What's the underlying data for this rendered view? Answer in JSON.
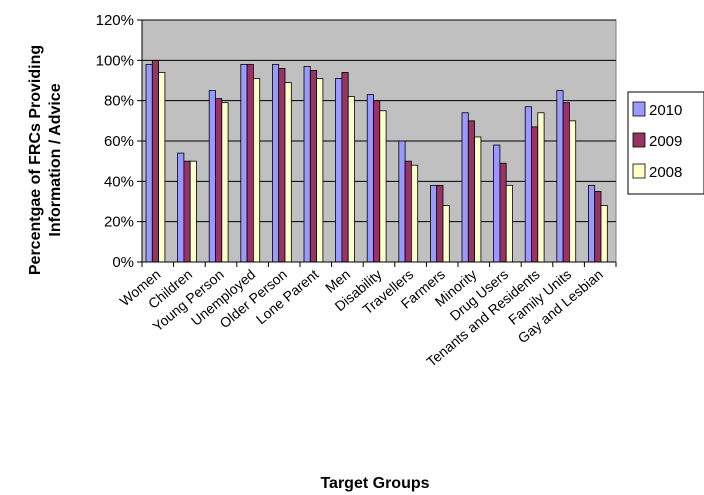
{
  "chart_data": {
    "type": "bar",
    "title": "",
    "xlabel": "Target Groups",
    "ylabel_lines": [
      "Percentgae of FRCs Providing",
      "Information / Advice"
    ],
    "ylim": [
      0,
      120
    ],
    "yticks": [
      0,
      20,
      40,
      60,
      80,
      100,
      120
    ],
    "ytick_labels": [
      "0%",
      "20%",
      "40%",
      "60%",
      "80%",
      "100%",
      "120%"
    ],
    "grid": true,
    "legend_position": "right",
    "categories": [
      "Women",
      "Children",
      "Young Person",
      "Unemployed",
      "Older Person",
      "Lone Parent",
      "Men",
      "Disability",
      "Travellers",
      "Farmers",
      "Minority",
      "Drug Users",
      "Tenants and Residents",
      "Family Units",
      "Gay and Lesbian"
    ],
    "series": [
      {
        "name": "2010",
        "color": "#9999ff",
        "values": [
          98,
          54,
          85,
          98,
          98,
          97,
          91,
          83,
          60,
          38,
          74,
          58,
          77,
          85,
          38
        ]
      },
      {
        "name": "2009",
        "color": "#993366",
        "values": [
          100,
          50,
          81,
          98,
          96,
          95,
          94,
          80,
          50,
          38,
          70,
          49,
          67,
          79,
          35
        ]
      },
      {
        "name": "2008",
        "color": "#ffffcc",
        "values": [
          94,
          50,
          79,
          91,
          89,
          91,
          82,
          75,
          48,
          28,
          62,
          38,
          74,
          70,
          28
        ]
      }
    ],
    "plot_background": "#c0c0c0"
  }
}
